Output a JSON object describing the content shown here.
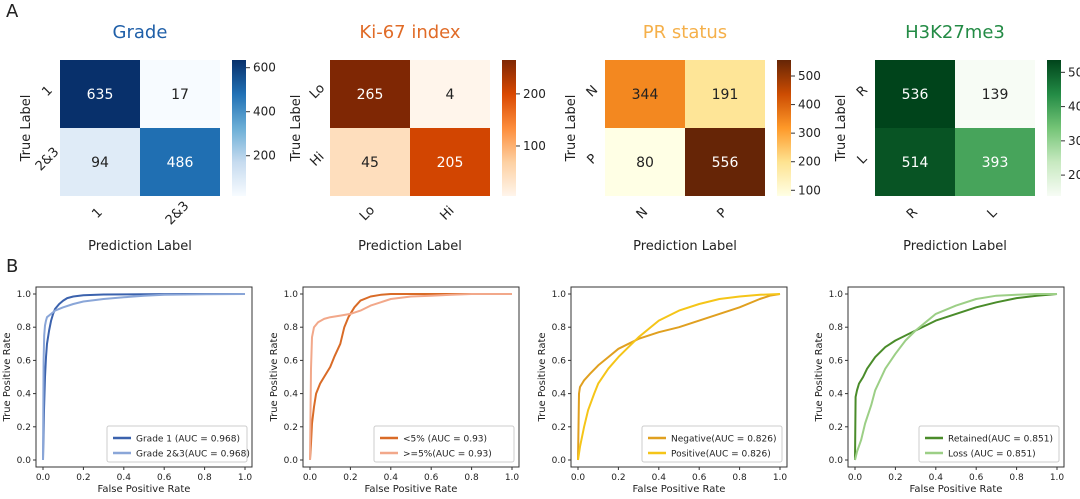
{
  "panel_labels": [
    "A",
    "B"
  ],
  "confusion": [
    {
      "title": "Grade",
      "title_color": "#1f5fa8",
      "classes": [
        "1",
        "2&3"
      ],
      "matrix": [
        [
          635,
          17
        ],
        [
          94,
          486
        ]
      ],
      "ylabel": "True Label",
      "xlabel": "Prediction Label",
      "cmap": [
        "#f7fbff",
        "#c6dbef",
        "#6baed6",
        "#2171b5",
        "#08306b"
      ],
      "vmin": 17,
      "vmax": 635,
      "cbar_ticks": [
        200,
        400,
        600
      ]
    },
    {
      "title": "Ki-67 index",
      "title_color": "#e06b27",
      "classes": [
        "Lo",
        "Hi"
      ],
      "matrix": [
        [
          265,
          4
        ],
        [
          45,
          205
        ]
      ],
      "ylabel": "True Label",
      "xlabel": "Prediction Label",
      "cmap": [
        "#fff5eb",
        "#fdd0a2",
        "#fd8d3c",
        "#d94801",
        "#7f2704"
      ],
      "vmin": 4,
      "vmax": 265,
      "cbar_ticks": [
        100,
        200
      ]
    },
    {
      "title": "PR status",
      "title_color": "#f5b04a",
      "classes": [
        "N",
        "P"
      ],
      "matrix": [
        [
          344,
          191
        ],
        [
          80,
          556
        ]
      ],
      "ylabel": "True Label",
      "xlabel": "Prediction Label",
      "cmap": [
        "#ffffe5",
        "#fee391",
        "#fe9929",
        "#cc4c02",
        "#662506"
      ],
      "vmin": 80,
      "vmax": 556,
      "cbar_ticks": [
        100,
        200,
        300,
        400,
        500
      ]
    },
    {
      "title": "H3K27me3",
      "title_color": "#238b45",
      "classes": [
        "R",
        "L"
      ],
      "matrix": [
        [
          536,
          139
        ],
        [
          514,
          393
        ]
      ],
      "ylabel": "True Label",
      "xlabel": "Prediction Label",
      "cmap": [
        "#f7fcf5",
        "#c7e9c0",
        "#74c476",
        "#238b45",
        "#00441b"
      ],
      "vmin": 139,
      "vmax": 536,
      "cbar_ticks": [
        200,
        300,
        400,
        500
      ]
    }
  ],
  "chart_data": [
    {
      "type": "line",
      "xlabel": "False Positive Rate",
      "ylabel": "True Positive Rate",
      "xlim": [
        0,
        1
      ],
      "ylim": [
        0,
        1
      ],
      "ticks": [
        "0.0",
        "0.2",
        "0.4",
        "0.6",
        "0.8",
        "1.0"
      ],
      "legend_position": "lower-right",
      "series": [
        {
          "name": "Grade 1  (AUC = 0.968)",
          "color": "#3b62ad",
          "x": [
            0,
            0.005,
            0.01,
            0.015,
            0.02,
            0.03,
            0.04,
            0.05,
            0.06,
            0.08,
            0.1,
            0.12,
            0.15,
            0.2,
            0.3,
            0.5,
            0.7,
            1.0
          ],
          "y": [
            0,
            0.3,
            0.5,
            0.62,
            0.7,
            0.78,
            0.84,
            0.88,
            0.91,
            0.94,
            0.96,
            0.975,
            0.985,
            0.993,
            0.997,
            0.999,
            1.0,
            1.0
          ]
        },
        {
          "name": "Grade 2&3(AUC = 0.968)",
          "color": "#8aa6d8",
          "x": [
            0,
            0.003,
            0.006,
            0.01,
            0.015,
            0.02,
            0.04,
            0.06,
            0.1,
            0.15,
            0.2,
            0.3,
            0.4,
            0.5,
            0.6,
            0.8,
            1.0
          ],
          "y": [
            0,
            0.6,
            0.75,
            0.81,
            0.84,
            0.86,
            0.88,
            0.9,
            0.92,
            0.94,
            0.955,
            0.97,
            0.98,
            0.99,
            0.995,
            0.999,
            1.0
          ]
        }
      ]
    },
    {
      "type": "line",
      "xlabel": "False Positive Rate",
      "ylabel": "True Positive Rate",
      "xlim": [
        0,
        1
      ],
      "ylim": [
        0,
        1
      ],
      "ticks": [
        "0.0",
        "0.2",
        "0.4",
        "0.6",
        "0.8",
        "1.0"
      ],
      "legend_position": "lower-right",
      "series": [
        {
          "name": "<5% (AUC = 0.93)",
          "color": "#d96b27",
          "x": [
            0,
            0.005,
            0.01,
            0.02,
            0.03,
            0.05,
            0.07,
            0.1,
            0.12,
            0.15,
            0.17,
            0.19,
            0.22,
            0.25,
            0.3,
            0.35,
            0.4,
            0.6,
            0.8,
            1.0
          ],
          "y": [
            0,
            0.1,
            0.22,
            0.32,
            0.4,
            0.46,
            0.5,
            0.56,
            0.62,
            0.7,
            0.8,
            0.86,
            0.92,
            0.96,
            0.985,
            0.995,
            1.0,
            1.0,
            1.0,
            1.0
          ]
        },
        {
          "name": ">=5%(AUC = 0.93)",
          "color": "#f2a88a",
          "x": [
            0,
            0.005,
            0.01,
            0.02,
            0.04,
            0.07,
            0.1,
            0.15,
            0.2,
            0.25,
            0.3,
            0.35,
            0.4,
            0.5,
            0.6,
            0.7,
            0.8,
            0.9,
            1.0
          ],
          "y": [
            0,
            0.55,
            0.74,
            0.8,
            0.83,
            0.85,
            0.86,
            0.87,
            0.88,
            0.9,
            0.93,
            0.95,
            0.97,
            0.985,
            0.99,
            0.995,
            1.0,
            1.0,
            1.0
          ]
        }
      ]
    },
    {
      "type": "line",
      "xlabel": "False Positive Rate",
      "ylabel": "True Positive Rate",
      "xlim": [
        0,
        1
      ],
      "ylim": [
        0,
        1
      ],
      "ticks": [
        "0.0",
        "0.2",
        "0.4",
        "0.6",
        "0.8",
        "1.0"
      ],
      "legend_position": "lower-right",
      "series": [
        {
          "name": "Negative(AUC = 0.826)",
          "color": "#e0a020",
          "x": [
            0,
            0.005,
            0.01,
            0.03,
            0.06,
            0.1,
            0.15,
            0.2,
            0.25,
            0.3,
            0.4,
            0.5,
            0.6,
            0.7,
            0.8,
            0.9,
            0.95,
            1.0
          ],
          "y": [
            0,
            0.4,
            0.44,
            0.48,
            0.52,
            0.57,
            0.62,
            0.67,
            0.7,
            0.73,
            0.77,
            0.8,
            0.84,
            0.88,
            0.92,
            0.97,
            0.99,
            1.0
          ]
        },
        {
          "name": "Positive(AUC = 0.826)",
          "color": "#f5c518",
          "x": [
            0,
            0.01,
            0.03,
            0.05,
            0.08,
            0.1,
            0.15,
            0.2,
            0.25,
            0.3,
            0.35,
            0.4,
            0.5,
            0.6,
            0.7,
            0.8,
            0.9,
            1.0
          ],
          "y": [
            0,
            0.08,
            0.2,
            0.3,
            0.4,
            0.46,
            0.55,
            0.62,
            0.68,
            0.74,
            0.79,
            0.84,
            0.9,
            0.94,
            0.97,
            0.985,
            0.995,
            1.0
          ]
        }
      ]
    },
    {
      "type": "line",
      "xlabel": "False Positive Rate",
      "ylabel": "True Positive Rate",
      "xlim": [
        0,
        1
      ],
      "ylim": [
        0,
        1
      ],
      "ticks": [
        "0.0",
        "0.2",
        "0.4",
        "0.6",
        "0.8",
        "1.0"
      ],
      "legend_position": "lower-right",
      "series": [
        {
          "name": "Retained(AUC = 0.851)",
          "color": "#4a8c2a",
          "x": [
            0,
            0.003,
            0.01,
            0.02,
            0.04,
            0.06,
            0.1,
            0.15,
            0.2,
            0.25,
            0.3,
            0.4,
            0.5,
            0.6,
            0.7,
            0.8,
            0.9,
            1.0
          ],
          "y": [
            0,
            0.38,
            0.42,
            0.46,
            0.5,
            0.55,
            0.62,
            0.68,
            0.72,
            0.75,
            0.78,
            0.84,
            0.88,
            0.92,
            0.95,
            0.975,
            0.99,
            1.0
          ]
        },
        {
          "name": "Loss     (AUC = 0.851)",
          "color": "#9ccf86",
          "x": [
            0,
            0.01,
            0.03,
            0.05,
            0.08,
            0.1,
            0.15,
            0.2,
            0.25,
            0.3,
            0.35,
            0.4,
            0.5,
            0.6,
            0.7,
            0.8,
            0.9,
            1.0
          ],
          "y": [
            0,
            0.05,
            0.12,
            0.22,
            0.33,
            0.42,
            0.55,
            0.64,
            0.72,
            0.78,
            0.83,
            0.88,
            0.93,
            0.97,
            0.99,
            0.995,
            1.0,
            1.0
          ]
        }
      ]
    }
  ]
}
